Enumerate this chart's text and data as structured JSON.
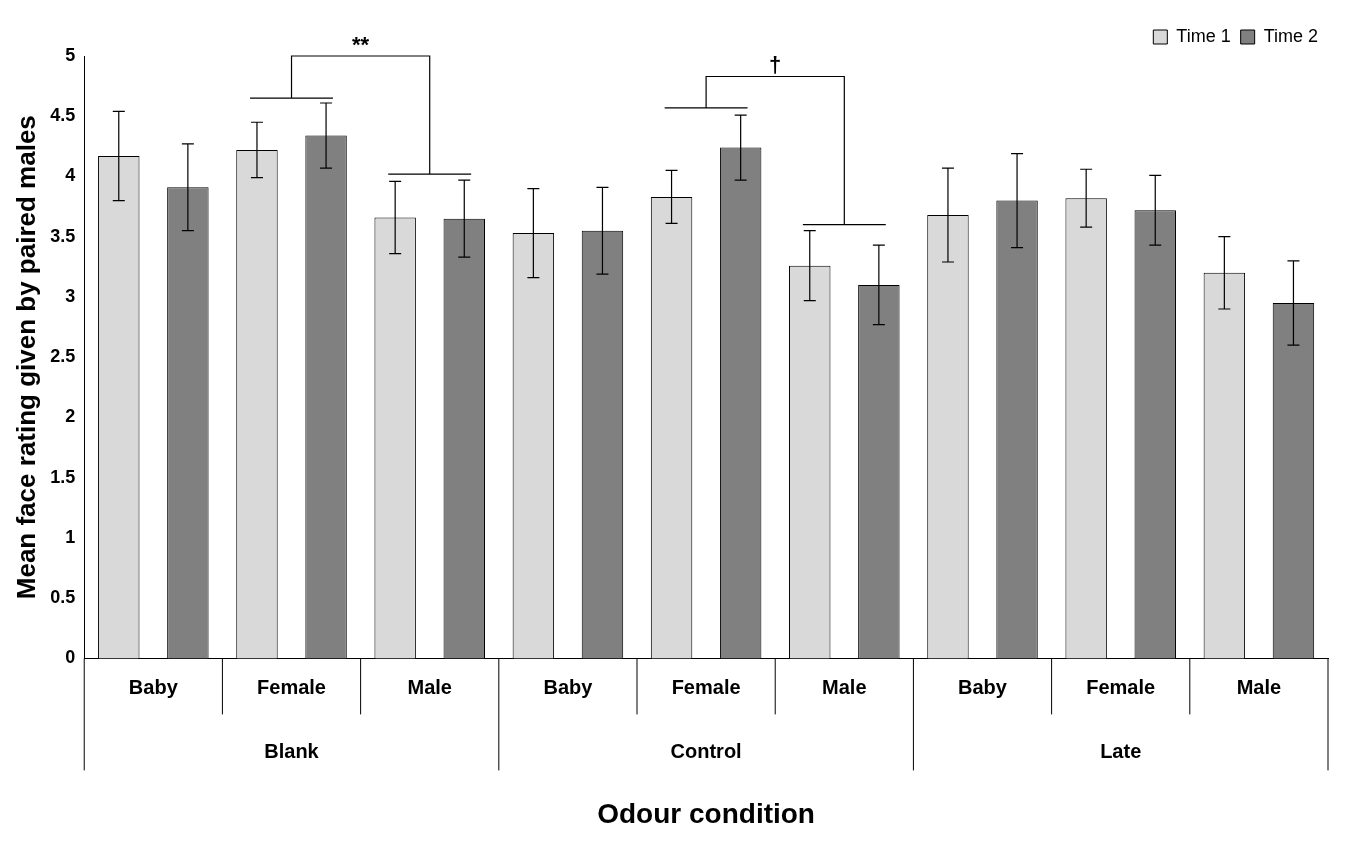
{
  "chart_data": {
    "type": "bar",
    "ylabel": "Mean face rating given by paired males",
    "xlabel": "Odour condition",
    "categories": [
      "Baby",
      "Female",
      "Male",
      "Baby",
      "Female",
      "Male",
      "Baby",
      "Female",
      "Male"
    ],
    "series": [
      {
        "name": "Time 1",
        "color": "#d9d9d9",
        "values": [
          4.17,
          4.22,
          3.66,
          3.53,
          3.83,
          3.26,
          3.68,
          3.82,
          3.2
        ],
        "errors": [
          0.37,
          0.23,
          0.3,
          0.37,
          0.22,
          0.29,
          0.39,
          0.24,
          0.3
        ]
      },
      {
        "name": "Time 2",
        "color": "#808080",
        "values": [
          3.91,
          4.34,
          3.65,
          3.55,
          4.24,
          3.1,
          3.8,
          3.72,
          2.95
        ],
        "errors": [
          0.36,
          0.27,
          0.32,
          0.36,
          0.27,
          0.33,
          0.39,
          0.29,
          0.35
        ]
      }
    ],
    "ylim": [
      0,
      5
    ],
    "yticks": [
      0,
      0.5,
      1,
      1.5,
      2,
      2.5,
      3,
      3.5,
      4,
      4.5,
      5
    ],
    "grid": false,
    "legend": "top right",
    "annotations": [
      "Blank",
      "Control",
      "Late",
      "**",
      "†"
    ]
  }
}
